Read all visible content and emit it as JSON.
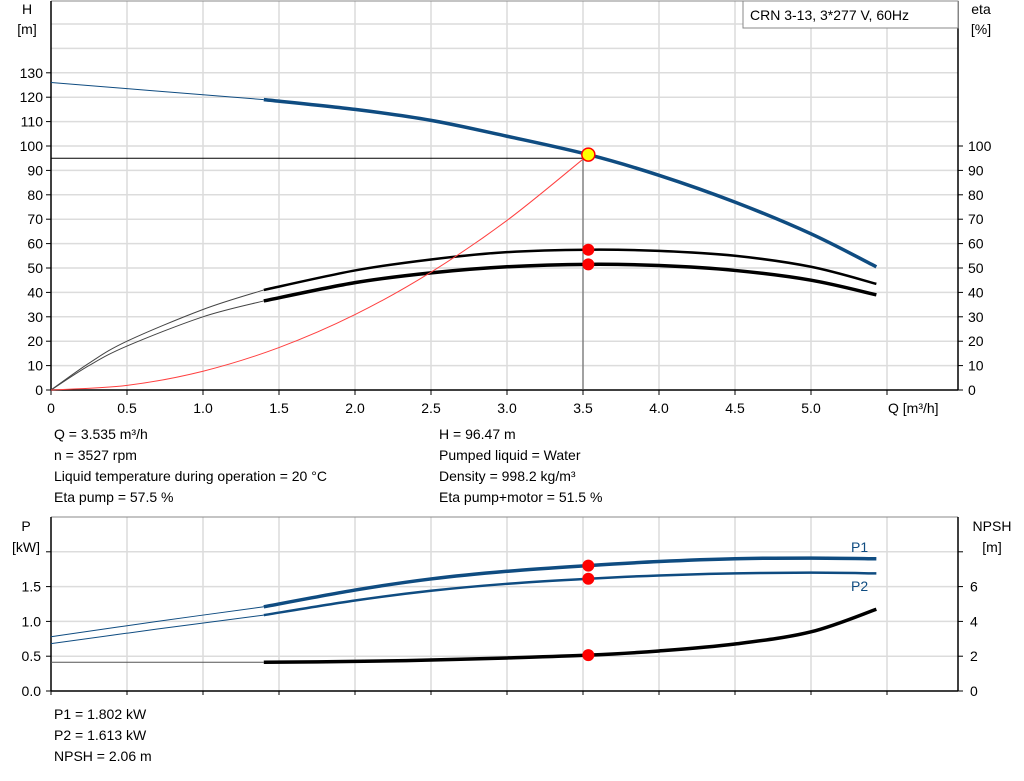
{
  "chart_data": [
    {
      "type": "line",
      "title_box": "CRN 3-13, 3*277 V, 60Hz",
      "xlabel": "Q [m³/h]",
      "ylabel_left": [
        "H",
        "[m]"
      ],
      "ylabel_right": [
        "eta",
        "[%]"
      ],
      "xlim": [
        0,
        5.9
      ],
      "ylim_left": [
        0,
        160
      ],
      "ylim_right": [
        0,
        160
      ],
      "x_ticks": [
        "0",
        "0.5",
        "1.0",
        "1.5",
        "2.0",
        "2.5",
        "3.0",
        "3.5",
        "4.0",
        "4.5",
        "5.0"
      ],
      "y_ticks_left": [
        0,
        10,
        20,
        30,
        40,
        50,
        60,
        70,
        80,
        90,
        100,
        110,
        120,
        130
      ],
      "y_ticks_right": [
        0,
        10,
        20,
        30,
        40,
        50,
        60,
        70,
        80,
        90,
        100
      ],
      "grid": true,
      "thin_below_q": 1.4,
      "series": [
        {
          "key": "head",
          "axis": "left",
          "color": "#0f4c81",
          "x": [
            0,
            0.5,
            1.0,
            1.4,
            2.0,
            2.5,
            3.0,
            3.535,
            4.0,
            4.5,
            5.0,
            5.43
          ],
          "y": [
            126,
            123.5,
            121,
            119,
            115,
            110.5,
            104,
            96.47,
            88,
            77,
            64,
            50.5
          ]
        },
        {
          "key": "eta-pump",
          "axis": "right",
          "color": "#000000",
          "x": [
            0,
            0.25,
            0.5,
            1.0,
            1.4,
            2.0,
            2.5,
            3.0,
            3.535,
            4.0,
            4.5,
            5.0,
            5.43
          ],
          "y": [
            0,
            11,
            20,
            33,
            41,
            49,
            53.5,
            56.5,
            57.5,
            57,
            55,
            50.5,
            43.5
          ]
        },
        {
          "key": "eta-pump-motor",
          "axis": "right",
          "color": "#000000",
          "x": [
            0,
            0.25,
            0.5,
            1.0,
            1.4,
            2.0,
            2.5,
            3.0,
            3.535,
            4.0,
            4.5,
            5.0,
            5.43
          ],
          "y": [
            0,
            10,
            18,
            30,
            36.5,
            44,
            48,
            50.5,
            51.5,
            51,
            49,
            45,
            39
          ]
        },
        {
          "key": "system-curve",
          "axis": "left",
          "color": "#ff4040",
          "x": [
            0,
            0.5,
            1.0,
            1.5,
            2.0,
            2.5,
            3.0,
            3.5
          ],
          "y": [
            0,
            1.9,
            7.7,
            17.4,
            30.9,
            48.3,
            69.5,
            94.6
          ]
        }
      ],
      "operating_point": {
        "q": 3.535,
        "h": 96.47,
        "eta_pump": 57.5,
        "eta_total": 51.5
      }
    },
    {
      "type": "line",
      "ylabel_left": [
        "P",
        "[kW]"
      ],
      "ylabel_right": [
        "NPSH",
        "[m]"
      ],
      "xlim": [
        0,
        5.9
      ],
      "ylim_left": [
        0,
        2.5
      ],
      "ylim_right": [
        0,
        10
      ],
      "y_ticks_left": [
        "0.0",
        "0.5",
        "1.0",
        "1.5"
      ],
      "y_ticks_right": [
        "0",
        "2",
        "4",
        "6"
      ],
      "grid": true,
      "series": [
        {
          "key": "p1",
          "name": "P1",
          "axis": "left",
          "color": "#0f4c81",
          "x": [
            0,
            0.7,
            1.4,
            2.0,
            2.5,
            3.0,
            3.535,
            4.0,
            4.5,
            5.0,
            5.43
          ],
          "y": [
            0.78,
            1.0,
            1.21,
            1.45,
            1.61,
            1.72,
            1.802,
            1.86,
            1.9,
            1.91,
            1.9
          ]
        },
        {
          "key": "p2",
          "name": "P2",
          "axis": "left",
          "color": "#0f4c81",
          "x": [
            0,
            0.7,
            1.4,
            2.0,
            2.5,
            3.0,
            3.535,
            4.0,
            4.5,
            5.0,
            5.43
          ],
          "y": [
            0.68,
            0.89,
            1.09,
            1.3,
            1.44,
            1.54,
            1.613,
            1.66,
            1.69,
            1.7,
            1.69
          ]
        },
        {
          "key": "npsh",
          "axis": "right",
          "color": "#000000",
          "x": [
            0,
            0.7,
            1.4,
            2.0,
            2.5,
            3.0,
            3.535,
            4.0,
            4.5,
            5.0,
            5.43
          ],
          "y": [
            1.65,
            1.65,
            1.65,
            1.7,
            1.78,
            1.9,
            2.06,
            2.3,
            2.7,
            3.4,
            4.7
          ]
        }
      ],
      "operating_point": {
        "q": 3.535,
        "p1": 1.802,
        "p2": 1.613,
        "npsh": 2.06
      }
    }
  ],
  "readout_top": {
    "left": [
      "Q = 3.535 m³/h",
      "n = 3527 rpm",
      "Liquid temperature during operation = 20 °C",
      "Eta pump = 57.5 %"
    ],
    "right": [
      "H = 96.47 m",
      "Pumped liquid = Water",
      "Density = 998.2 kg/m³",
      "Eta pump+motor = 51.5 %"
    ]
  },
  "readout_bottom": [
    "P1 = 1.802 kW",
    "P2 = 1.613 kW",
    "NPSH = 2.06 m"
  ],
  "colors": {
    "head": "#0f4c81",
    "marker": "#ff0000",
    "op_point_fill": "#ffff00",
    "grid": "#dcdcdc"
  }
}
